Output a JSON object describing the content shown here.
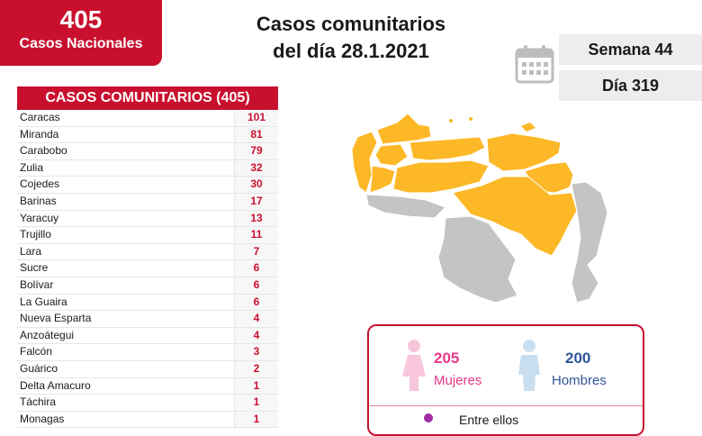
{
  "badge": {
    "number": "405",
    "label": "Casos Nacionales"
  },
  "title": {
    "line1": "Casos comunitarios",
    "line2": "del día 28.1.2021"
  },
  "calendar_icon": "calendar-icon",
  "week": "Semana 44",
  "day": "Día 319",
  "table": {
    "header": "CASOS COMUNITARIOS (405)",
    "rows": [
      {
        "state": "Caracas",
        "count": "101"
      },
      {
        "state": "Miranda",
        "count": "81"
      },
      {
        "state": "Carabobo",
        "count": "79"
      },
      {
        "state": "Zulia",
        "count": "32"
      },
      {
        "state": "Cojedes",
        "count": "30"
      },
      {
        "state": "Barinas",
        "count": "17"
      },
      {
        "state": "Yaracuy",
        "count": "13"
      },
      {
        "state": "Trujillo",
        "count": "11"
      },
      {
        "state": "Lara",
        "count": "7"
      },
      {
        "state": "Sucre",
        "count": "6"
      },
      {
        "state": "Bolívar",
        "count": "6"
      },
      {
        "state": "La Guaira",
        "count": "6"
      },
      {
        "state": "Nueva Esparta",
        "count": "4"
      },
      {
        "state": "Anzoátegui",
        "count": "4"
      },
      {
        "state": "Falcón",
        "count": "3"
      },
      {
        "state": "Guárico",
        "count": "2"
      },
      {
        "state": "Delta Amacuro",
        "count": "1"
      },
      {
        "state": "Táchira",
        "count": "1"
      },
      {
        "state": "Monagas",
        "count": "1"
      }
    ]
  },
  "colors": {
    "brand_red": "#c8102e",
    "map_highlight": "#fdb827",
    "map_other": "#c4c4c4",
    "women": "#e8378a",
    "men": "#2f5597"
  },
  "gender": {
    "women": {
      "count": "205",
      "label": "Mujeres",
      "icon": "woman-icon"
    },
    "men": {
      "count": "200",
      "label": "Hombres",
      "icon": "man-icon"
    },
    "footer_text": "Entre ellos"
  }
}
